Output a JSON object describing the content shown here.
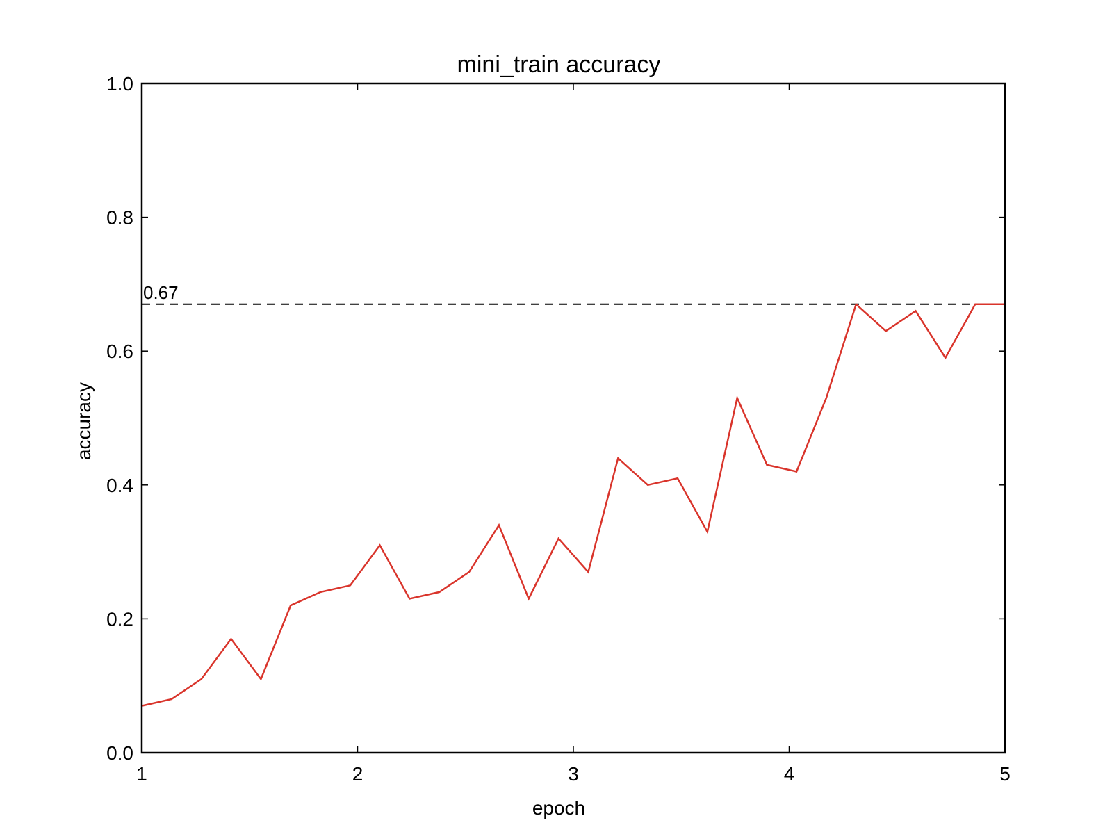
{
  "chart_data": {
    "type": "line",
    "title": "mini_train accuracy",
    "xlabel": "epoch",
    "ylabel": "accuracy",
    "xlim": [
      1,
      5
    ],
    "ylim": [
      0.0,
      1.0
    ],
    "xticks": [
      1,
      2,
      3,
      4,
      5
    ],
    "xtick_labels": [
      "1",
      "2",
      "3",
      "4",
      "5"
    ],
    "yticks": [
      0.0,
      0.2,
      0.4,
      0.6,
      0.8,
      1.0
    ],
    "ytick_labels": [
      "0.0",
      "0.2",
      "0.4",
      "0.6",
      "0.8",
      "1.0"
    ],
    "grid": false,
    "series": [
      {
        "color": "#d9342b",
        "x": [
          1.0,
          1.138,
          1.276,
          1.414,
          1.552,
          1.69,
          1.828,
          1.966,
          2.103,
          2.241,
          2.379,
          2.517,
          2.655,
          2.793,
          2.931,
          3.069,
          3.207,
          3.345,
          3.483,
          3.621,
          3.759,
          3.897,
          4.034,
          4.172,
          4.31,
          4.448,
          4.586,
          4.724,
          4.862,
          5.0
        ],
        "y": [
          0.07,
          0.08,
          0.11,
          0.17,
          0.11,
          0.22,
          0.24,
          0.25,
          0.31,
          0.23,
          0.24,
          0.27,
          0.34,
          0.23,
          0.32,
          0.27,
          0.44,
          0.4,
          0.41,
          0.33,
          0.53,
          0.43,
          0.42,
          0.53,
          0.67,
          0.63,
          0.66,
          0.59,
          0.67,
          0.67
        ]
      }
    ],
    "reference_line": {
      "y": 0.67,
      "label": "0.67",
      "style": "dashed",
      "color": "#000000"
    }
  }
}
